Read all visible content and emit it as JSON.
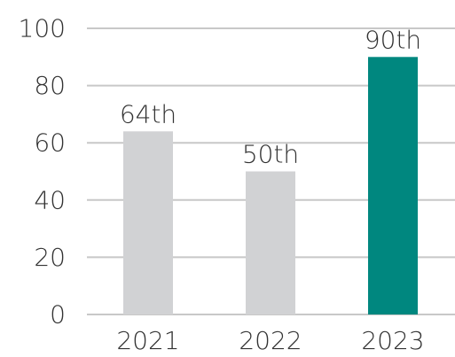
{
  "chart_data": {
    "type": "bar",
    "categories": [
      "2021",
      "2022",
      "2023"
    ],
    "values": [
      64,
      50,
      90
    ],
    "data_labels": [
      "64th",
      "50th",
      "90th"
    ],
    "title": "",
    "xlabel": "",
    "ylabel": "",
    "ylim": [
      0,
      100
    ],
    "yticks": [
      0,
      20,
      40,
      60,
      80,
      100
    ],
    "ytick_labels": [
      "0",
      "20",
      "40",
      "60",
      "80",
      "100"
    ],
    "grid": true,
    "colors": [
      "#d1d2d4",
      "#d1d2d4",
      "#00877f"
    ]
  }
}
